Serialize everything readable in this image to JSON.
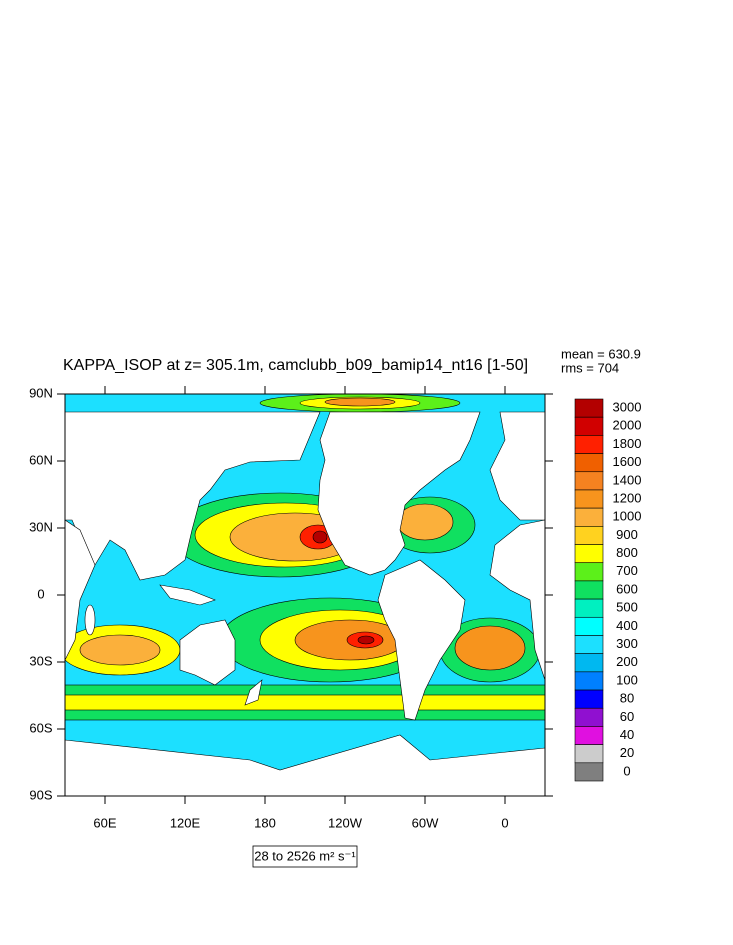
{
  "title": "KAPPA_ISOP at z= 305.1m, camclubb_b09_bamip14_nt16 [1-50]",
  "stats": [
    "mean = 630.9",
    "rms = 704"
  ],
  "footer": "28 to 2526 m² s⁻¹",
  "map": {
    "xlim": [
      30,
      390
    ],
    "ylim": [
      -90,
      90
    ],
    "xticks": [
      {
        "value": 60,
        "label": "60E"
      },
      {
        "value": 120,
        "label": "120E"
      },
      180,
      {
        "value": 240,
        "label": "120W"
      },
      {
        "value": 300,
        "label": "60W"
      },
      {
        "value": 360,
        "label": "0"
      }
    ],
    "yticks": [
      {
        "value": 90,
        "label": "90N"
      },
      {
        "value": 60,
        "label": "60N"
      },
      {
        "value": 30,
        "label": "30N"
      },
      0,
      {
        "value": -30,
        "label": "30S"
      },
      {
        "value": -60,
        "label": "60S"
      },
      {
        "value": -90,
        "label": "90S"
      }
    ]
  },
  "colorbar": {
    "levels": [
      3000,
      2000,
      1800,
      1600,
      1400,
      1200,
      1000,
      900,
      800,
      700,
      600,
      500,
      400,
      300,
      200,
      100,
      80,
      60,
      40,
      20,
      0
    ],
    "colors": [
      "#b30000",
      "#d10000",
      "#ff2000",
      "#f06000",
      "#f58220",
      "#f7941d",
      "#fbb03b",
      "#ffd21f",
      "#ffff00",
      "#5cf01a",
      "#10e060",
      "#00f0c0",
      "#00ffff",
      "#1ce0ff",
      "#00b8f0",
      "#0080ff",
      "#0000ff",
      "#9010d0",
      "#e010e0",
      "#cccccc",
      "#7f7f7f"
    ]
  }
}
